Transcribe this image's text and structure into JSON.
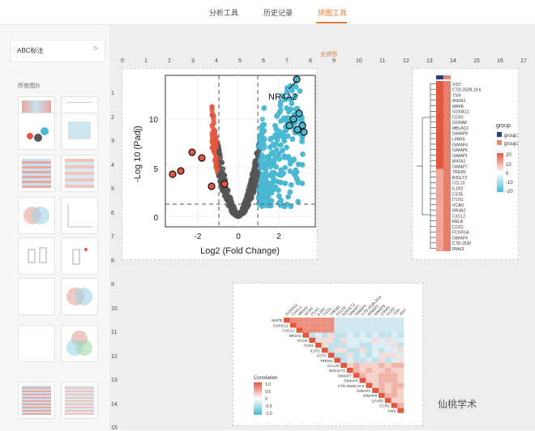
{
  "nav": {
    "tabs": [
      {
        "label": "分析工具"
      },
      {
        "label": "历史记录"
      },
      {
        "label": "拼图工具"
      }
    ],
    "active": 2
  },
  "sidebar": {
    "group_label": "ABC标注",
    "group_arrow": ">",
    "section_label": "所有图片"
  },
  "canvas": {
    "title": "全拼图"
  },
  "ruler": {
    "top": [
      "0",
      "1",
      "2",
      "3",
      "4",
      "5",
      "6",
      "7",
      "8",
      "9",
      "10",
      "11",
      "12",
      "13",
      "14",
      "15",
      "16",
      "17"
    ],
    "left": [
      "1",
      "2",
      "3",
      "4",
      "5",
      "6",
      "7",
      "8",
      "9",
      "10",
      "11",
      "12",
      "13",
      "14",
      "15"
    ]
  },
  "volcano": {
    "ylabel": "-Log 10 (Padj)",
    "xlabel": "Log2 (Fold Change)",
    "label": "NR4A2",
    "xticks": [
      "-2",
      "0",
      "2"
    ],
    "yticks": [
      "0",
      "5",
      "10"
    ],
    "colors": {
      "up": "#4bb8d4",
      "down": "#e2573f",
      "ns": "#555555"
    }
  },
  "heatmap": {
    "genes": [
      "XIST",
      "CTD-2528L19.6",
      "TSIX",
      "ANXA1",
      "MAFB",
      "S100A12",
      "CCR2",
      "S100A8",
      "MBLAC2",
      "GIMAP8",
      "LPAR5",
      "GIMAP4",
      "GIMAP6",
      "GIMAP1",
      "ANXA1",
      "GIMAP7",
      "TREM1",
      "B3GLT2",
      "CCL20",
      "IL1R2",
      "CSTA",
      "ITLN1",
      "VCAN",
      "NR4A2",
      "CXCL2",
      "RELA",
      "CCR2",
      "FCGR1A",
      "GIMAP4",
      "CTD-2528",
      "IRAK3"
    ],
    "legend_title": "group",
    "groups": [
      "group1",
      "group2"
    ],
    "scale": [
      "20",
      "10",
      "0",
      "-10",
      "-20"
    ],
    "group_colors": {
      "group1": "#2e3e76",
      "group2": "#e08a78"
    }
  },
  "correlation": {
    "legend_title": "Correlation",
    "scale": [
      "1.0",
      "0.5",
      "0",
      "-0.5",
      "-1.0"
    ],
    "col_labels": [
      "S100A12",
      "CXCL2",
      "NR4A2",
      "VCAN",
      "ITLN1",
      "IL1R2",
      "CSTA",
      "TREM1",
      "CCL20",
      "B3GALT2",
      "GIMAP7",
      "GIMAP4",
      "CTD-2528L19.6",
      "GIMAP1",
      "GIMAP8",
      "LPAR5",
      "CCR2",
      "TSIX",
      "XIST"
    ],
    "row_labels": [
      "MAFB",
      "S100A12",
      "CXCL2",
      "NR4A2",
      "VCAN",
      "ITLN1",
      "IL1R2",
      "CSTA",
      "TREM1",
      "CCL20",
      "B3GALT2",
      "GIMAP7",
      "GIMAP4",
      "CTD-2528L19.6",
      "GIMAP1",
      "GIMAP8",
      "LPAR5",
      "CCR2",
      "TSIX"
    ]
  },
  "watermark": "仙桃学术"
}
